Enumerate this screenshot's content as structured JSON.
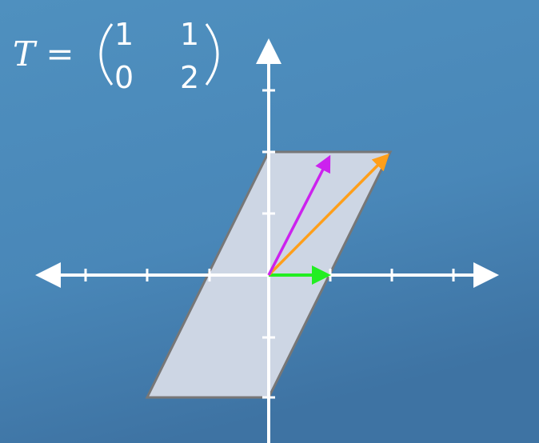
{
  "formula": {
    "lhs": "T =",
    "matrix": [
      [
        "1",
        "1"
      ],
      [
        "0",
        "2"
      ]
    ]
  }
}
